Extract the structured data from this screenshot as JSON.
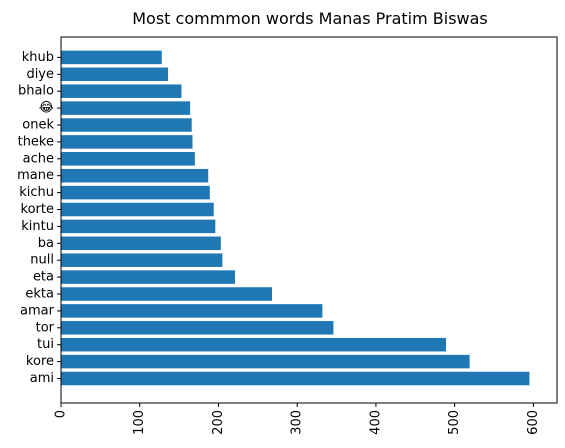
{
  "chart_data": {
    "type": "bar",
    "orientation": "horizontal",
    "title": "Most commmon words Manas Pratim Biswas",
    "xlabel": "",
    "ylabel": "",
    "xlim": [
      0,
      630
    ],
    "xticks": [
      0,
      100,
      200,
      300,
      400,
      500,
      600
    ],
    "xtick_rotation_deg": 90,
    "grid": false,
    "legend": "none",
    "bar_color": "#1f77b4",
    "categories": [
      "ami",
      "kore",
      "tui",
      "tor",
      "amar",
      "ekta",
      "eta",
      "null",
      "ba",
      "kintu",
      "korte",
      "kichu",
      "mane",
      "ache",
      "theke",
      "onek",
      "😂",
      "bhalo",
      "diye",
      "khub"
    ],
    "values": [
      595,
      519,
      489,
      346,
      332,
      268,
      221,
      205,
      203,
      196,
      194,
      189,
      187,
      170,
      167,
      166,
      164,
      153,
      136,
      128
    ]
  }
}
